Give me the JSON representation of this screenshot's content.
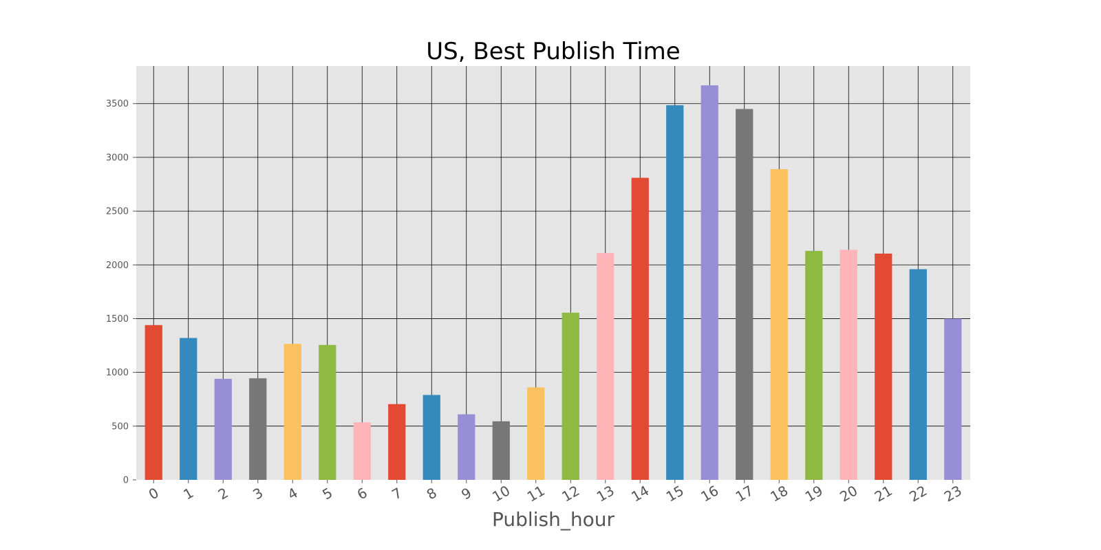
{
  "chart_data": {
    "type": "bar",
    "title": "US, Best Publish Time",
    "xlabel": "Publish_hour",
    "ylabel": "",
    "categories": [
      "0",
      "1",
      "2",
      "3",
      "4",
      "5",
      "6",
      "7",
      "8",
      "9",
      "10",
      "11",
      "12",
      "13",
      "14",
      "15",
      "16",
      "17",
      "18",
      "19",
      "20",
      "21",
      "22",
      "23"
    ],
    "values": [
      1440,
      1320,
      940,
      945,
      1265,
      1255,
      535,
      705,
      790,
      610,
      545,
      860,
      1555,
      2110,
      2810,
      3485,
      3670,
      3450,
      2890,
      2130,
      2140,
      2105,
      1960,
      1500
    ],
    "colors": [
      "#E24A33",
      "#348ABD",
      "#988ED5",
      "#777777",
      "#FBC15E",
      "#8EBA42",
      "#FFB5B8"
    ],
    "yticks": [
      0,
      500,
      1000,
      1500,
      2000,
      2500,
      3000,
      3500
    ],
    "ylim": [
      0,
      3850
    ],
    "grid": true,
    "plot_background": "#E5E5E5",
    "grid_color": "#000000",
    "xtick_rotation": -30
  }
}
